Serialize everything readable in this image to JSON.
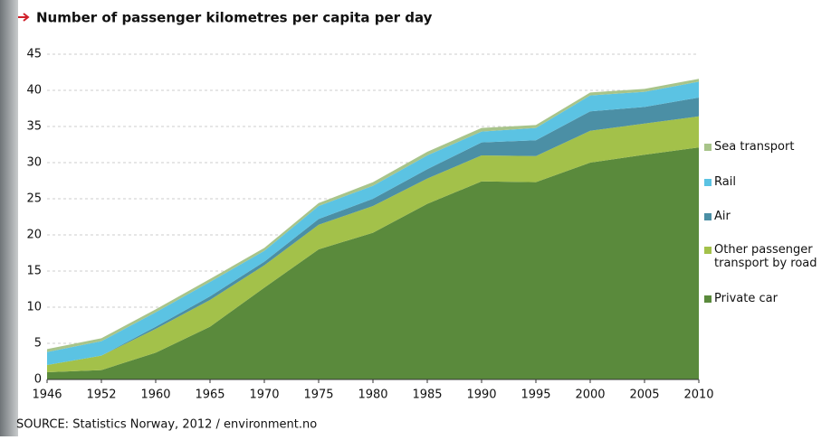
{
  "chart_data": {
    "type": "stacked_area",
    "title": "Number of passenger kilometres per capita per day",
    "source": "SOURCE: Statistics Norway, 2012 / environment.no",
    "categories": [
      "1946",
      "1952",
      "1960",
      "1965",
      "1970",
      "1975",
      "1980",
      "1985",
      "1990",
      "1995",
      "2000",
      "2005",
      "2010"
    ],
    "series": [
      {
        "name": "Private car",
        "color": "#5a8a3c",
        "values": [
          1.0,
          1.3,
          3.7,
          7.3,
          12.7,
          18.0,
          20.3,
          24.3,
          27.4,
          27.3,
          30.0,
          31.1,
          32.1
        ]
      },
      {
        "name": "Other passenger transport by road",
        "color": "#a3c14a",
        "values": [
          1.0,
          2.0,
          3.3,
          3.7,
          3.1,
          3.4,
          3.7,
          3.5,
          3.6,
          3.6,
          4.4,
          4.3,
          4.3
        ]
      },
      {
        "name": "Air",
        "color": "#4b8fa5",
        "values": [
          0,
          0,
          0.3,
          0.5,
          0.5,
          0.8,
          1.0,
          1.3,
          1.8,
          2.2,
          2.7,
          2.3,
          2.6
        ]
      },
      {
        "name": "Rail",
        "color": "#5bc3e3",
        "values": [
          1.8,
          2.0,
          2.0,
          2.0,
          1.5,
          1.8,
          1.8,
          1.9,
          1.5,
          1.7,
          2.2,
          2.1,
          2.2
        ]
      },
      {
        "name": "Sea transport",
        "color": "#a8c48a",
        "values": [
          0.4,
          0.4,
          0.4,
          0.4,
          0.4,
          0.4,
          0.5,
          0.5,
          0.5,
          0.4,
          0.4,
          0.4,
          0.4
        ]
      }
    ],
    "ylim": [
      0,
      45
    ],
    "yticks": [
      0,
      5,
      10,
      15,
      20,
      25,
      30,
      35,
      40,
      45
    ],
    "grid": true,
    "legend": "right"
  }
}
